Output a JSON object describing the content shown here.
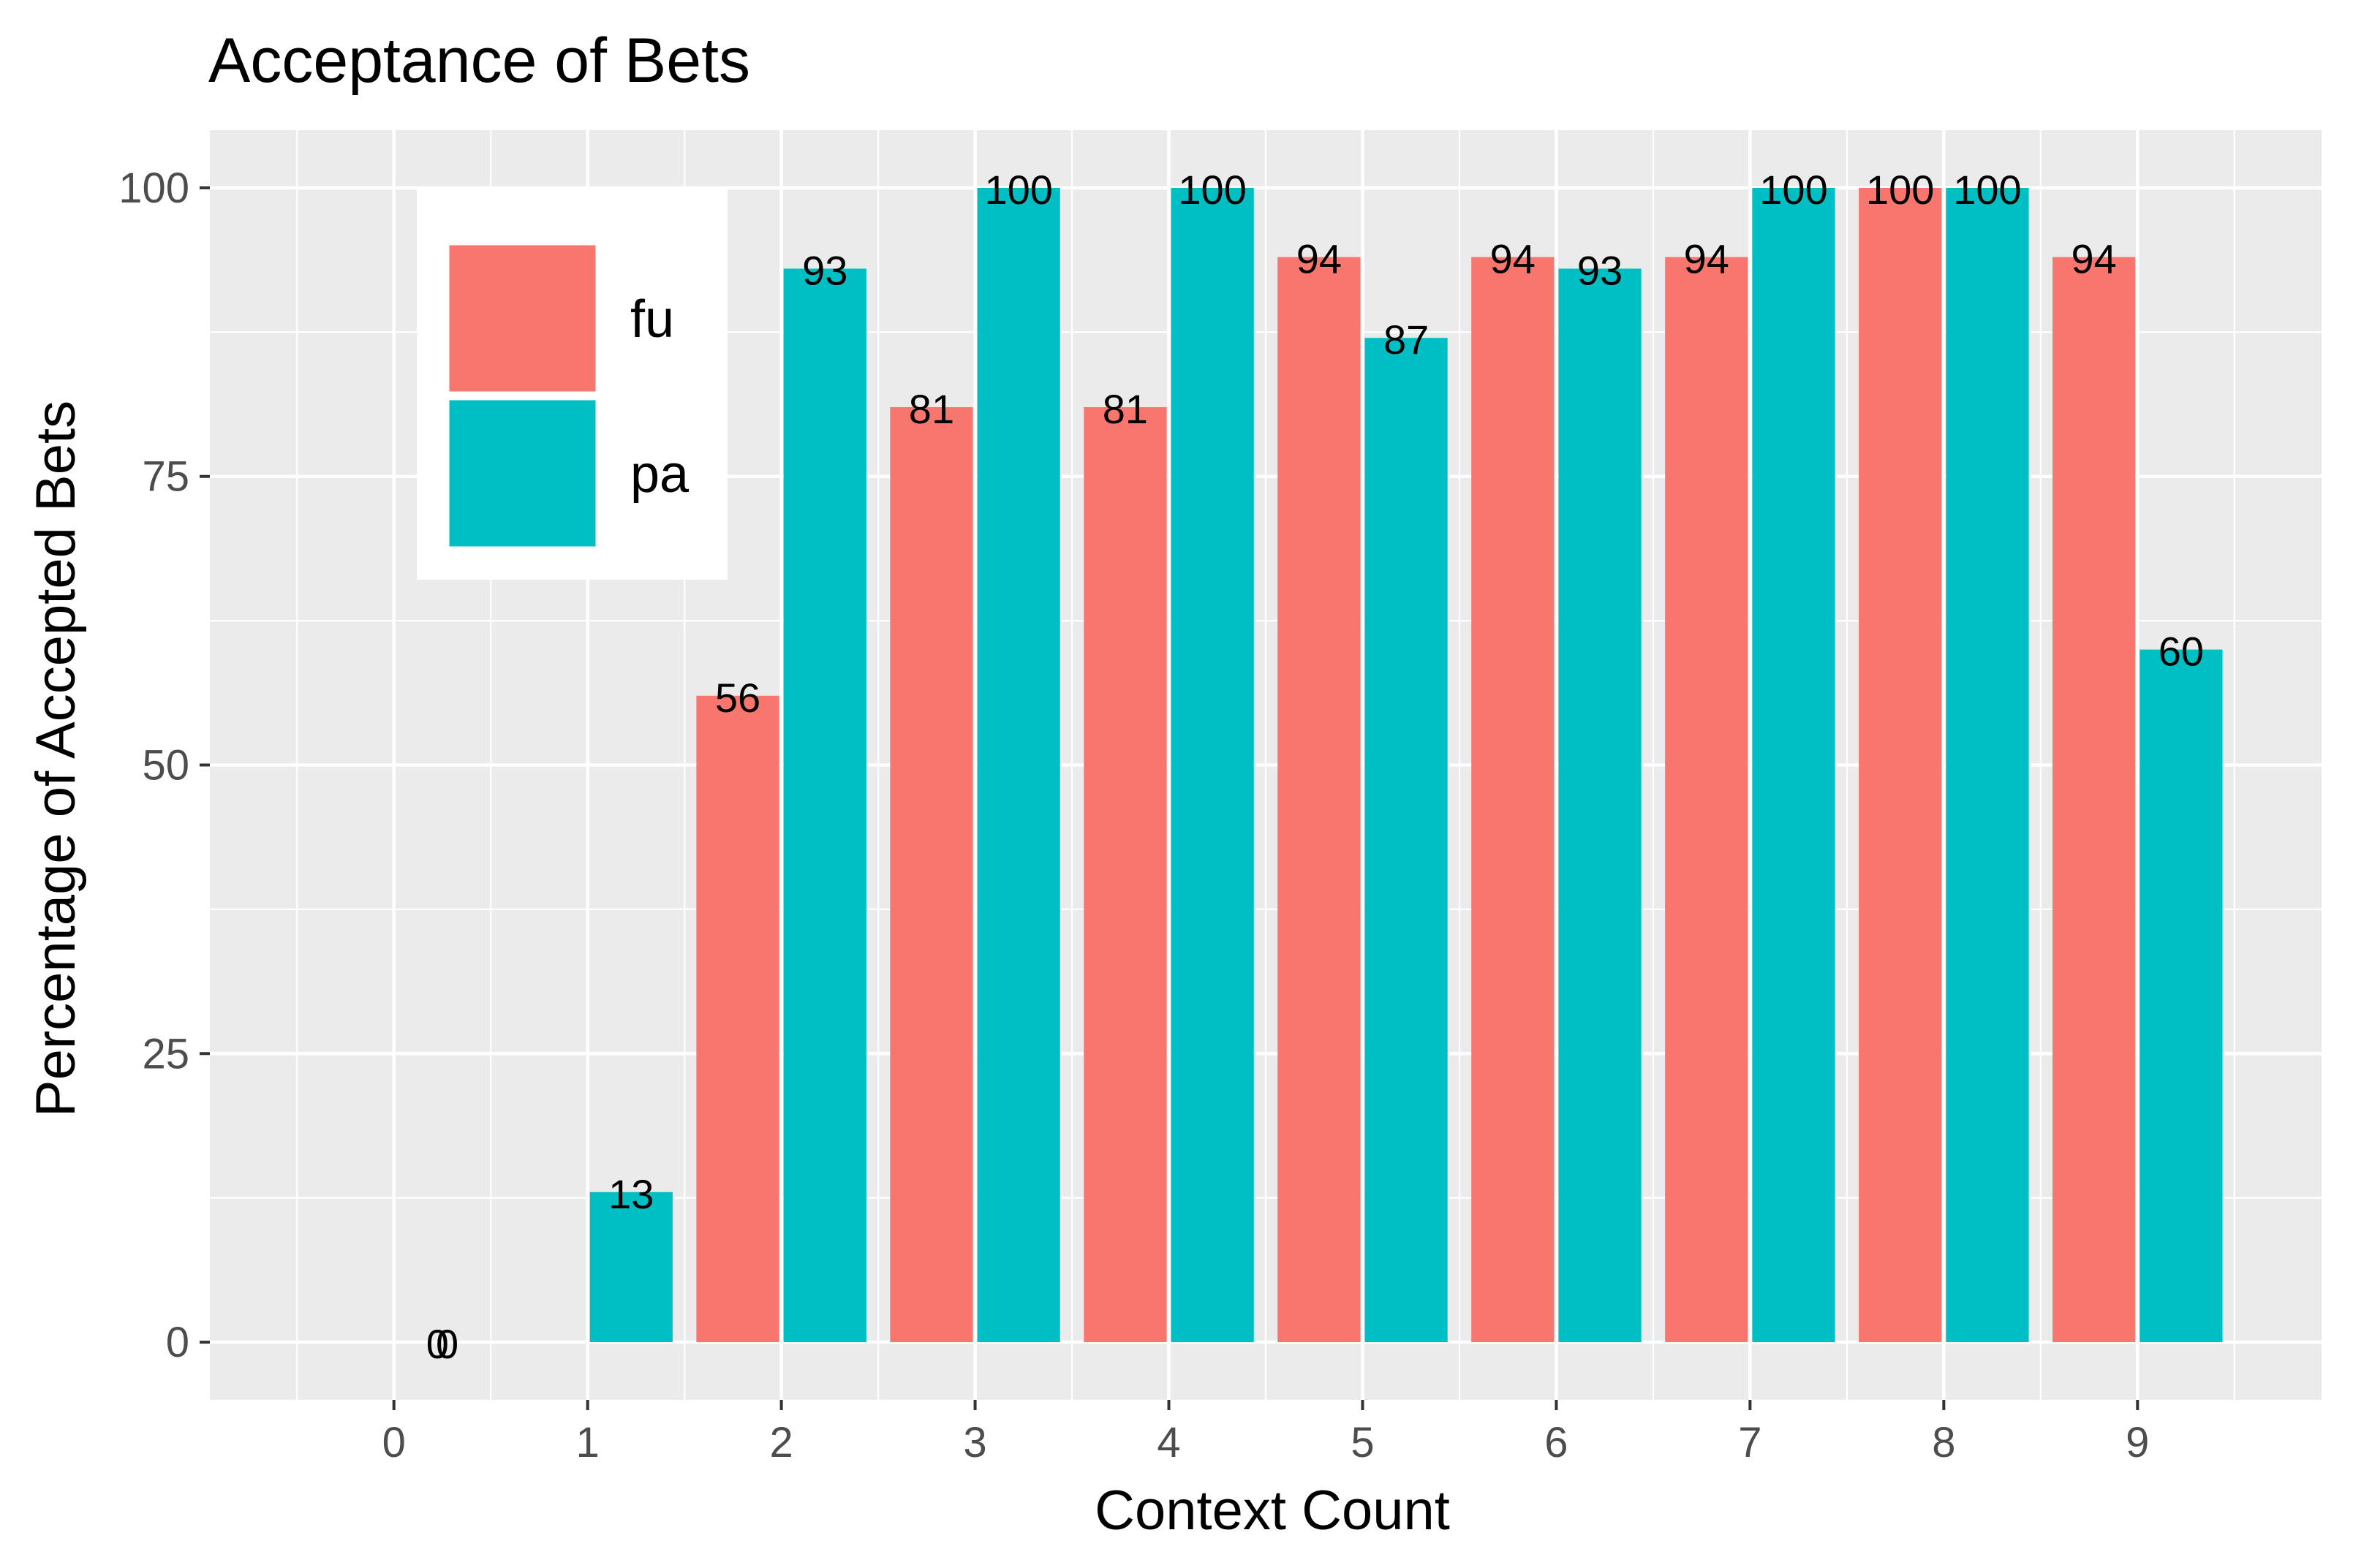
{
  "chart_data": {
    "type": "bar",
    "title": "Acceptance of Bets",
    "xlabel": "Context Count",
    "ylabel": "Percentage of Accepted Bets",
    "x_ticks": [
      "0",
      "1",
      "2",
      "3",
      "4",
      "5",
      "6",
      "7",
      "8",
      "9"
    ],
    "y_ticks": [
      "0",
      "25",
      "50",
      "75",
      "100"
    ],
    "ylim": [
      -5,
      105
    ],
    "grid": true,
    "legend_position": "top-left",
    "series": [
      {
        "name": "fu",
        "color": "#F8766D",
        "points": [
          {
            "x": 0.5,
            "value": 0
          },
          {
            "x": 2,
            "value": 56
          },
          {
            "x": 3,
            "value": 81
          },
          {
            "x": 4,
            "value": 81
          },
          {
            "x": 5,
            "value": 94
          },
          {
            "x": 6,
            "value": 94
          },
          {
            "x": 7,
            "value": 94
          },
          {
            "x": 8,
            "value": 100
          },
          {
            "x": 9,
            "value": 94
          }
        ]
      },
      {
        "name": "pa",
        "color": "#00BFC4",
        "points": [
          {
            "x": 0,
            "value": 0
          },
          {
            "x": 1,
            "value": 13
          },
          {
            "x": 2,
            "value": 93
          },
          {
            "x": 3,
            "value": 100
          },
          {
            "x": 4,
            "value": 100
          },
          {
            "x": 5,
            "value": 87
          },
          {
            "x": 6,
            "value": 93
          },
          {
            "x": 7,
            "value": 100
          },
          {
            "x": 8,
            "value": 100
          },
          {
            "x": 9,
            "value": 60
          }
        ]
      }
    ]
  },
  "colors": {
    "panel_background": "#EBEBEB",
    "grid_line": "#FFFFFF"
  }
}
